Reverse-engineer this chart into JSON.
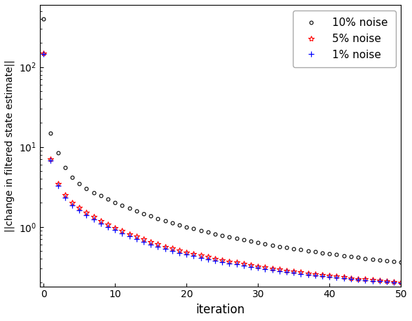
{
  "xlabel": "iteration",
  "ylabel": "||change in filtered state estimate||",
  "xlim": [
    -0.5,
    50
  ],
  "ylim_log": [
    0.18,
    600
  ],
  "noise_10_label": "10% noise",
  "noise_5_label": "5% noise",
  "noise_1_label": "1% noise",
  "noise_10_color": "black",
  "noise_5_color": "red",
  "noise_1_color": "blue",
  "noise_10_marker": "o",
  "noise_5_marker": "*",
  "noise_1_marker": "+",
  "marker_size_10": 3.5,
  "marker_size_5": 6,
  "marker_size_1": 6,
  "figsize": [
    5.88,
    4.58
  ],
  "dpi": 100,
  "noise_10": [
    400,
    15,
    8.5,
    5.5,
    4.2,
    3.5,
    3.0,
    2.7,
    2.45,
    2.22,
    2.02,
    1.85,
    1.7,
    1.57,
    1.46,
    1.36,
    1.27,
    1.19,
    1.12,
    1.06,
    1.0,
    0.95,
    0.9,
    0.86,
    0.82,
    0.78,
    0.75,
    0.72,
    0.69,
    0.66,
    0.635,
    0.612,
    0.59,
    0.57,
    0.552,
    0.534,
    0.518,
    0.502,
    0.487,
    0.473,
    0.46,
    0.448,
    0.436,
    0.425,
    0.414,
    0.404,
    0.394,
    0.385,
    0.376,
    0.368,
    0.36
  ],
  "noise_5": [
    150,
    7.0,
    3.5,
    2.5,
    2.0,
    1.75,
    1.52,
    1.34,
    1.2,
    1.08,
    0.98,
    0.89,
    0.82,
    0.76,
    0.7,
    0.65,
    0.61,
    0.57,
    0.54,
    0.51,
    0.485,
    0.462,
    0.441,
    0.422,
    0.404,
    0.388,
    0.373,
    0.359,
    0.346,
    0.334,
    0.323,
    0.313,
    0.303,
    0.294,
    0.286,
    0.278,
    0.271,
    0.264,
    0.257,
    0.251,
    0.245,
    0.24,
    0.235,
    0.23,
    0.225,
    0.221,
    0.217,
    0.213,
    0.209,
    0.205,
    0.202
  ],
  "noise_1": [
    145,
    6.8,
    3.3,
    2.3,
    1.85,
    1.62,
    1.41,
    1.25,
    1.11,
    1.0,
    0.91,
    0.83,
    0.76,
    0.7,
    0.65,
    0.605,
    0.566,
    0.532,
    0.502,
    0.475,
    0.452,
    0.431,
    0.412,
    0.395,
    0.379,
    0.365,
    0.351,
    0.339,
    0.327,
    0.317,
    0.307,
    0.297,
    0.289,
    0.281,
    0.273,
    0.266,
    0.259,
    0.253,
    0.247,
    0.242,
    0.237,
    0.232,
    0.227,
    0.223,
    0.219,
    0.215,
    0.211,
    0.208,
    0.204,
    0.201,
    0.198
  ]
}
